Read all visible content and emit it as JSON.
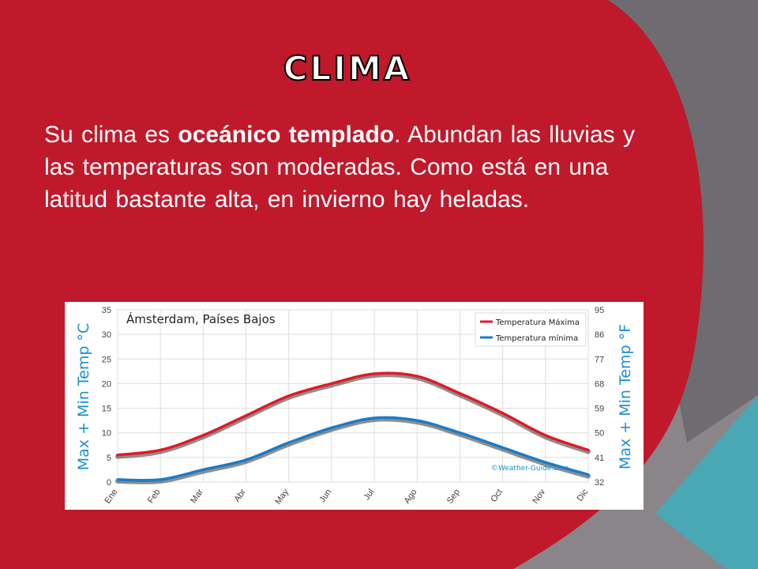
{
  "slide": {
    "title": "CLIMA",
    "paragraph": {
      "intro": "Su clima es ",
      "highlight": "oceánico templado",
      "rest": ". Abundan las lluvias y las temperaturas son moderadas. Como está en una latitud bastante alta, en invierno hay heladas."
    }
  },
  "colors": {
    "red": "#c0192b",
    "gray": "#7a767b",
    "teal": "#4aa8b4",
    "max_line": "#e01b24",
    "min_line": "#1a7cc9"
  },
  "chart_data": {
    "type": "line",
    "title": "Ámsterdam, Países Bajos",
    "categories": [
      "Ene",
      "Feb",
      "Mar",
      "Abr",
      "May",
      "Jun",
      "Jul",
      "Ago",
      "Sep",
      "Oct",
      "Nov",
      "Dic"
    ],
    "series": [
      {
        "name": "Temperatura Máxima",
        "values": [
          5.5,
          6.5,
          9.5,
          13.5,
          17.5,
          20,
          22,
          21.5,
          18,
          14,
          9.5,
          6.5
        ]
      },
      {
        "name": "Temperatura mínima",
        "values": [
          0.5,
          0.5,
          2.5,
          4.5,
          8,
          11,
          13,
          12.5,
          10,
          7,
          4,
          1.5
        ]
      }
    ],
    "ylabel": "Max + Min Temp °C",
    "ylabel_right": "Max + Min Temp °F",
    "ylim": [
      0,
      35
    ],
    "yticks": [
      0,
      5,
      10,
      15,
      20,
      25,
      30,
      35
    ],
    "yticks_right": [
      32,
      41,
      50,
      59,
      68,
      77,
      86,
      95
    ],
    "grid": true,
    "legend_position": "top-right",
    "credit": "©Weather-Guide.com"
  }
}
